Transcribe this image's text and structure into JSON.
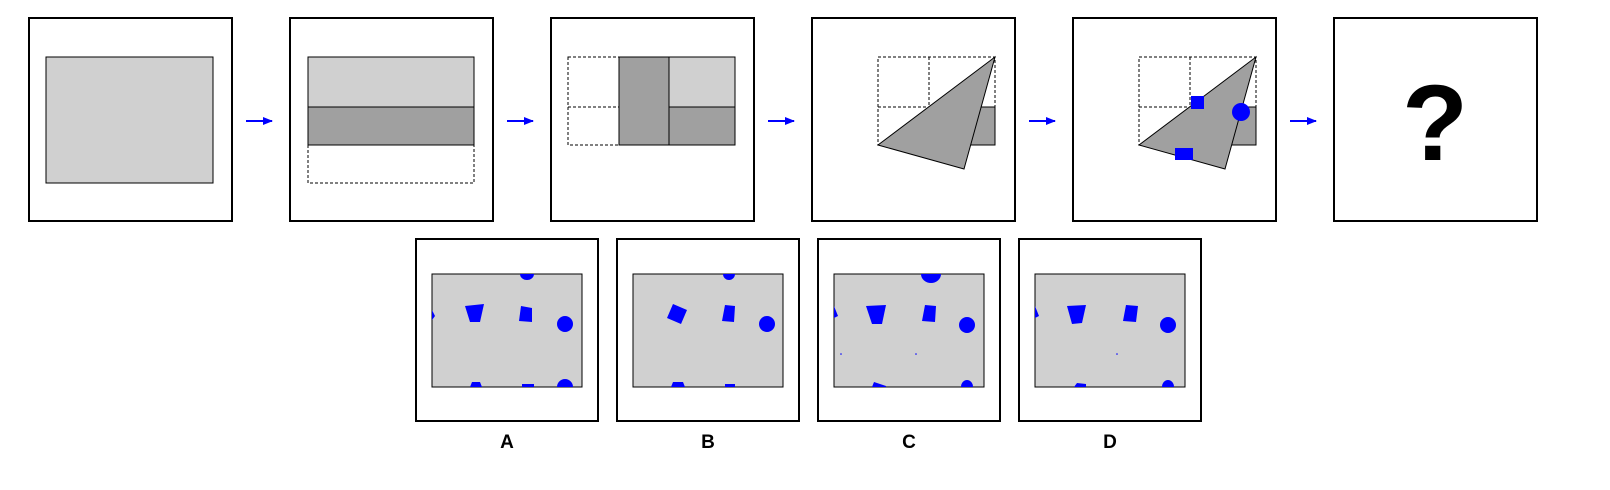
{
  "puzzle": {
    "question_mark": "?",
    "options": [
      {
        "letter": "A"
      },
      {
        "letter": "B"
      },
      {
        "letter": "C"
      },
      {
        "letter": "D"
      }
    ]
  },
  "colors": {
    "paper": "#d0d0d0",
    "folded_layer": "#a0a0a0",
    "punch": "#0000ff",
    "arrow": "#0000ff",
    "outline": "#000000"
  },
  "icons": {
    "step_arrow": "right-arrow-icon",
    "circle_punch": "circle-hole-icon",
    "square_punch": "square-hole-icon"
  }
}
